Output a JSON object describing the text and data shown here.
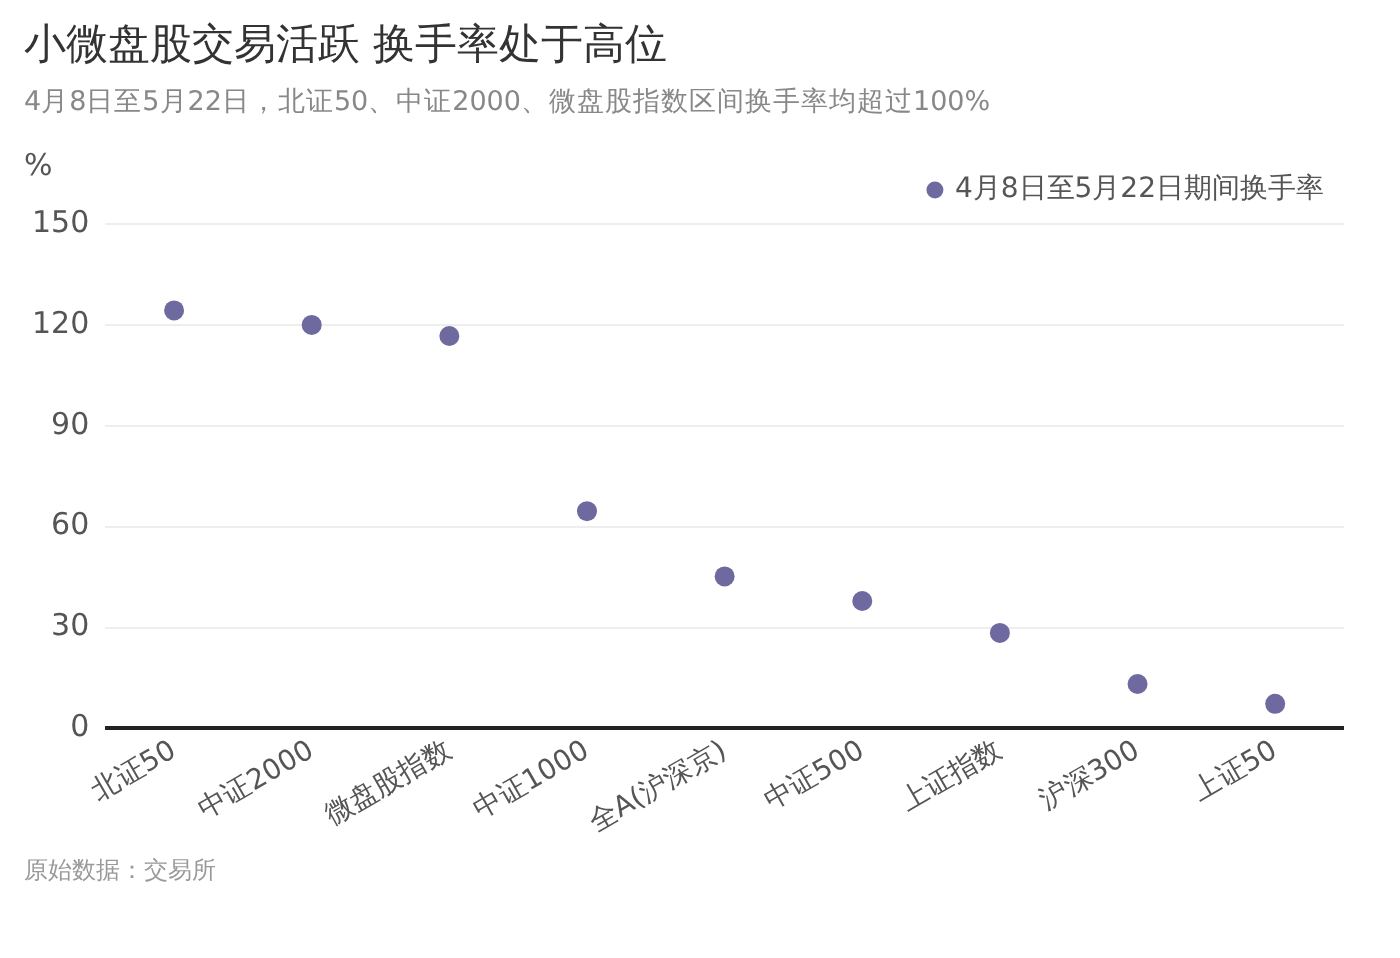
{
  "chart_data": {
    "type": "scatter",
    "title": "小微盘股交易活跃  换手率处于高位",
    "subtitle": "4月8日至5月22日，北证50、中证2000、微盘股指数区间换手率均超过100%",
    "ylabel": "%",
    "categories": [
      "北证50",
      "中证2000",
      "微盘股指数",
      "中证1000",
      "全A(沪深京)",
      "中证500",
      "上证指数",
      "沪深300",
      "上证50"
    ],
    "series": [
      {
        "name": "4月8日至5月22日期间换手率",
        "color": "#6e6aa0",
        "values": [
          124.3,
          120.0,
          116.7,
          64.6,
          45.2,
          37.9,
          28.4,
          13.2,
          7.3
        ]
      }
    ],
    "ylim": [
      0,
      150
    ],
    "yticks": [
      0,
      30,
      60,
      90,
      120,
      150
    ],
    "grid": "y",
    "legend": "top right",
    "marker": "circle",
    "annotations": [
      "原始数据：交易所"
    ]
  }
}
